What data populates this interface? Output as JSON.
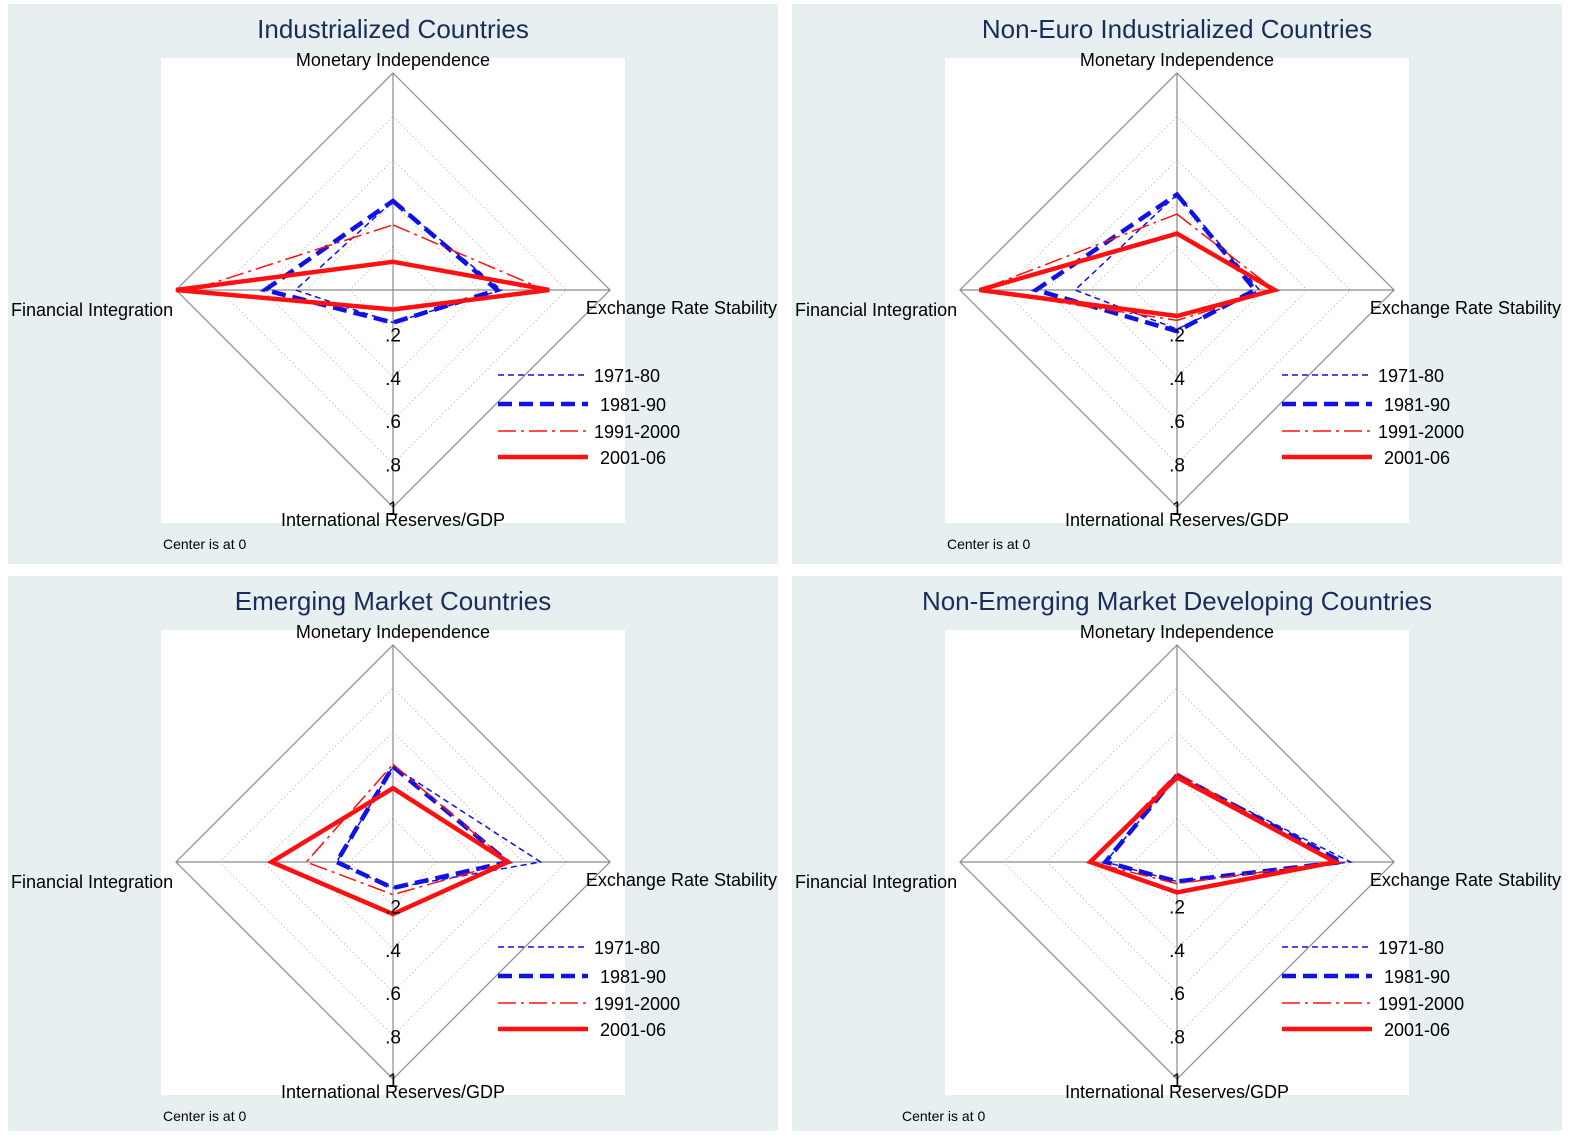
{
  "chart_data": [
    {
      "type": "radar",
      "title": "Industrialized Countries",
      "axes": [
        "Monetary Independence",
        "Exchange Rate Stability",
        "International Reserves/GDP",
        "Financial Integration"
      ],
      "tick_labels": [
        ".2",
        ".4",
        ".6",
        ".8",
        "1"
      ],
      "range": [
        0,
        1
      ],
      "note": "Center is at 0",
      "series": [
        {
          "name": "1971-80",
          "values": [
            0.41,
            0.5,
            0.15,
            0.45
          ]
        },
        {
          "name": "1981-90",
          "values": [
            0.41,
            0.48,
            0.15,
            0.59
          ]
        },
        {
          "name": "1991-2000",
          "values": [
            0.3,
            0.7,
            0.09,
            0.93
          ]
        },
        {
          "name": "2001-06",
          "values": [
            0.13,
            0.72,
            0.09,
            1.0
          ]
        }
      ]
    },
    {
      "type": "radar",
      "title": "Non-Euro Industrialized Countries",
      "axes": [
        "Monetary Independence",
        "Exchange Rate Stability",
        "International Reserves/GDP",
        "Financial Integration"
      ],
      "tick_labels": [
        ".2",
        ".4",
        ".6",
        ".8",
        "1"
      ],
      "range": [
        0,
        1
      ],
      "note": "Center is at 0",
      "series": [
        {
          "name": "1971-80",
          "values": [
            0.44,
            0.38,
            0.18,
            0.47
          ]
        },
        {
          "name": "1981-90",
          "values": [
            0.44,
            0.36,
            0.19,
            0.65
          ]
        },
        {
          "name": "1991-2000",
          "values": [
            0.35,
            0.45,
            0.14,
            0.91
          ]
        },
        {
          "name": "2001-06",
          "values": [
            0.26,
            0.45,
            0.12,
            0.91
          ]
        }
      ]
    },
    {
      "type": "radar",
      "title": "Emerging Market Countries",
      "axes": [
        "Monetary Independence",
        "Exchange Rate Stability",
        "International Reserves/GDP",
        "Financial Integration"
      ],
      "tick_labels": [
        ".2",
        ".4",
        ".6",
        ".8",
        "1"
      ],
      "range": [
        0,
        1
      ],
      "note": "Center is at 0",
      "series": [
        {
          "name": "1971-80",
          "values": [
            0.44,
            0.68,
            0.12,
            0.26
          ]
        },
        {
          "name": "1981-90",
          "values": [
            0.44,
            0.53,
            0.12,
            0.26
          ]
        },
        {
          "name": "1991-2000",
          "values": [
            0.45,
            0.53,
            0.15,
            0.4
          ]
        },
        {
          "name": "2001-06",
          "values": [
            0.34,
            0.53,
            0.24,
            0.56
          ]
        }
      ]
    },
    {
      "type": "radar",
      "title": "Non-Emerging Market Developing Countries",
      "axes": [
        "Monetary Independence",
        "Exchange Rate Stability",
        "International Reserves/GDP",
        "Financial Integration"
      ],
      "tick_labels": [
        ".2",
        ".4",
        ".6",
        ".8",
        "1"
      ],
      "range": [
        0,
        1
      ],
      "note": "Center is at 0",
      "series": [
        {
          "name": "1971-80",
          "values": [
            0.4,
            0.8,
            0.09,
            0.33
          ]
        },
        {
          "name": "1981-90",
          "values": [
            0.4,
            0.76,
            0.09,
            0.33
          ]
        },
        {
          "name": "1991-2000",
          "values": [
            0.41,
            0.73,
            0.1,
            0.4
          ]
        },
        {
          "name": "2001-06",
          "values": [
            0.39,
            0.73,
            0.14,
            0.4
          ]
        }
      ]
    }
  ],
  "colors": {
    "blue": "#1010e8",
    "red": "#ff1010",
    "panel_bg": "#e8eff1",
    "title": "#1a2d5a"
  }
}
